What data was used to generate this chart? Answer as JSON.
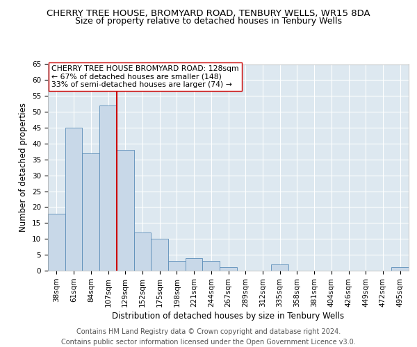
{
  "title1": "CHERRY TREE HOUSE, BROMYARD ROAD, TENBURY WELLS, WR15 8DA",
  "title2": "Size of property relative to detached houses in Tenbury Wells",
  "xlabel": "Distribution of detached houses by size in Tenbury Wells",
  "ylabel": "Number of detached properties",
  "categories": [
    "38sqm",
    "61sqm",
    "84sqm",
    "107sqm",
    "129sqm",
    "152sqm",
    "175sqm",
    "198sqm",
    "221sqm",
    "244sqm",
    "267sqm",
    "289sqm",
    "312sqm",
    "335sqm",
    "358sqm",
    "381sqm",
    "404sqm",
    "426sqm",
    "449sqm",
    "472sqm",
    "495sqm"
  ],
  "values": [
    18,
    45,
    37,
    52,
    38,
    12,
    10,
    3,
    4,
    3,
    1,
    0,
    0,
    2,
    0,
    0,
    0,
    0,
    0,
    0,
    1
  ],
  "bar_color": "#c8d8e8",
  "bar_edge_color": "#5b8db8",
  "ref_line_color": "#cc0000",
  "annotation_text": "CHERRY TREE HOUSE BROMYARD ROAD: 128sqm\n← 67% of detached houses are smaller (148)\n33% of semi-detached houses are larger (74) →",
  "annotation_box_color": "white",
  "annotation_box_edge_color": "#cc0000",
  "footer": "Contains HM Land Registry data © Crown copyright and database right 2024.\nContains public sector information licensed under the Open Government Licence v3.0.",
  "ylim": [
    0,
    65
  ],
  "yticks": [
    0,
    5,
    10,
    15,
    20,
    25,
    30,
    35,
    40,
    45,
    50,
    55,
    60,
    65
  ],
  "bg_color": "#dde8f0",
  "grid_color": "white",
  "title_fontsize": 9.5,
  "subtitle_fontsize": 9,
  "axis_label_fontsize": 8.5,
  "tick_fontsize": 7.5,
  "footer_fontsize": 7,
  "annotation_fontsize": 7.8
}
